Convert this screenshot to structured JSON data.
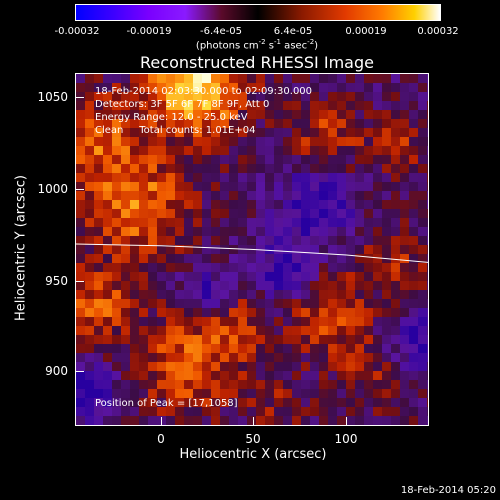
{
  "colorbar": {
    "tick_labels": [
      "-0.00032",
      "-0.00019",
      "-6.4e-05",
      "6.4e-05",
      "0.00019",
      "0.00032"
    ],
    "units_text": "(photons cm",
    "units_exp1": "-2",
    "units_mid1": " s",
    "units_exp2": "-1",
    "units_mid2": " asec",
    "units_exp3": "-2",
    "units_close": ")",
    "colors": [
      "#0000ff",
      "#7a00ff",
      "#000000",
      "#e23a00",
      "#ffd000",
      "#ffffff"
    ]
  },
  "title": "Reconstructed RHESSI Image",
  "annotations": {
    "time_range": "18-Feb-2014 02:03:30.000 to 02:09:30.000",
    "detectors": "Detectors: 3F 5F 6F 7F 8F 9F, Att 0",
    "energy": "Energy Range: 12.0 - 25.0 keV",
    "clean": "Clean     Total counts: 1.01E+04",
    "peak": "Position of Peak = [17,1058]"
  },
  "axes": {
    "xlabel": "Heliocentric X (arcsec)",
    "ylabel": "Heliocentric Y (arcsec)",
    "xticks": [
      "0",
      "50",
      "100"
    ],
    "yticks": [
      "1050",
      "1000",
      "950",
      "900"
    ]
  },
  "chart_data": {
    "type": "heatmap",
    "title": "Reconstructed RHESSI Image",
    "xlabel": "Heliocentric X (arcsec)",
    "ylabel": "Heliocentric Y (arcsec)",
    "xlim": [
      -46,
      144
    ],
    "ylim": [
      872,
      1062
    ],
    "xticks": [
      0,
      50,
      100
    ],
    "yticks": [
      900,
      950,
      1000,
      1050
    ],
    "colorbar_range": [
      -0.00032,
      0.00032
    ],
    "colorbar_units": "photons cm^-2 s^-1 asec^-2",
    "peak_position": [
      17,
      1058
    ],
    "limb_curve": {
      "x": [
        -46,
        0,
        50,
        100,
        144
      ],
      "y": [
        970,
        969,
        967,
        964,
        960
      ]
    }
  },
  "footer": "18-Feb-2014 05:20"
}
